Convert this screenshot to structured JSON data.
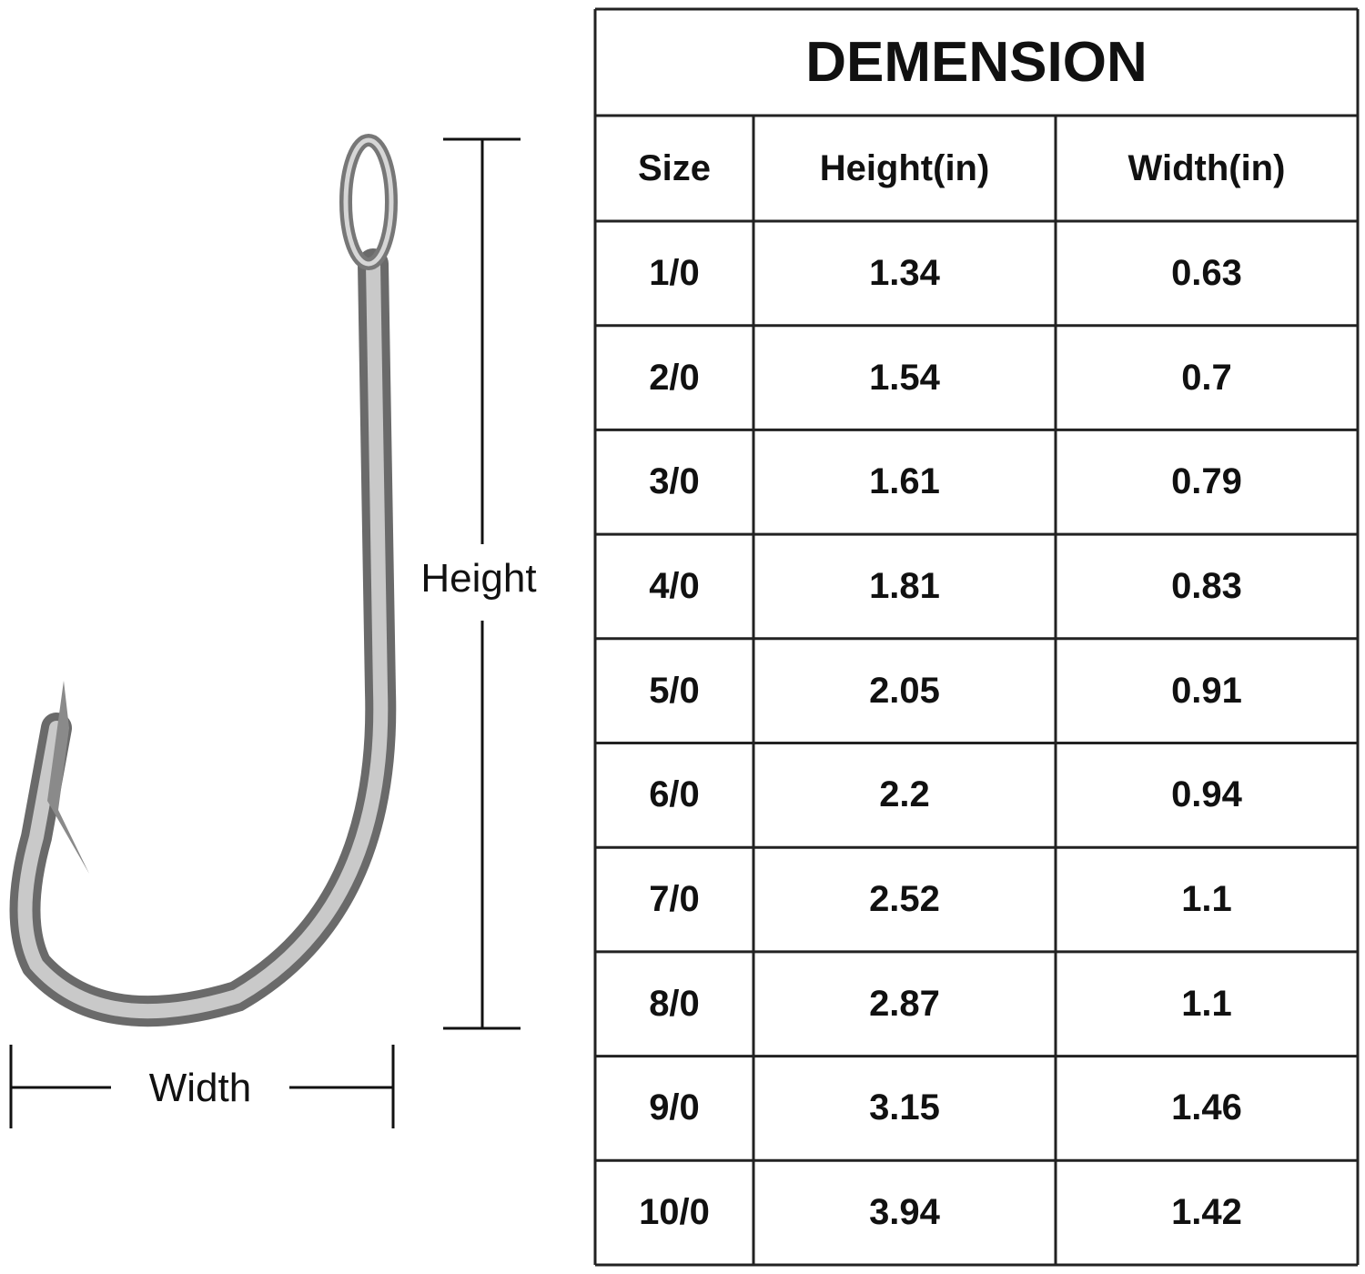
{
  "diagram": {
    "height_label": "Height",
    "width_label": "Width"
  },
  "table": {
    "title": "DEMENSION",
    "header": [
      "Size",
      "Height(in)",
      "Width(in)"
    ],
    "rows": [
      [
        "1/0",
        "1.34",
        "0.63"
      ],
      [
        "2/0",
        "1.54",
        "0.7"
      ],
      [
        "3/0",
        "1.61",
        "0.79"
      ],
      [
        "4/0",
        "1.81",
        "0.83"
      ],
      [
        "5/0",
        "2.05",
        "0.91"
      ],
      [
        "6/0",
        "2.2",
        "0.94"
      ],
      [
        "7/0",
        "2.52",
        "1.1"
      ],
      [
        "8/0",
        "2.87",
        "1.1"
      ],
      [
        "9/0",
        "3.15",
        "1.46"
      ],
      [
        "10/0",
        "3.94",
        "1.42"
      ]
    ]
  }
}
